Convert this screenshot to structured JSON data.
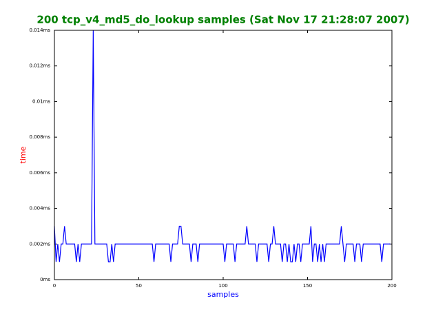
{
  "chart_data": {
    "type": "line",
    "title": "200 tcp_v4_md5_do_lookup samples (Sat Nov 17 21:28:07 2007)",
    "x_label": "samples",
    "y_label": "time",
    "color": "#0000ff",
    "xlim": [
      0,
      200
    ],
    "xticks": [
      0,
      50,
      100,
      150,
      200
    ],
    "ylim": [
      0,
      0.014
    ],
    "yticks": [
      {
        "value": 0,
        "label": "0ms"
      },
      {
        "value": 0.002,
        "label": "0.002ms"
      },
      {
        "value": 0.004,
        "label": "0.004ms"
      },
      {
        "value": 0.006,
        "label": "0.006ms"
      },
      {
        "value": 0.008,
        "label": "0.008ms"
      },
      {
        "value": 0.01,
        "label": "0.01ms"
      },
      {
        "value": 0.012,
        "label": "0.012ms"
      },
      {
        "value": 0.014,
        "label": "0.014ms"
      }
    ],
    "values": [
      0.003,
      0.001,
      0.002,
      0.001,
      0.002,
      0.002,
      0.003,
      0.002,
      0.002,
      0.002,
      0.002,
      0.002,
      0.002,
      0.001,
      0.002,
      0.001,
      0.002,
      0.002,
      0.002,
      0.002,
      0.002,
      0.002,
      0.002,
      0.014,
      0.002,
      0.002,
      0.002,
      0.002,
      0.002,
      0.002,
      0.002,
      0.002,
      0.001,
      0.001,
      0.002,
      0.001,
      0.002,
      0.002,
      0.002,
      0.002,
      0.002,
      0.002,
      0.002,
      0.002,
      0.002,
      0.002,
      0.002,
      0.002,
      0.002,
      0.002,
      0.002,
      0.002,
      0.002,
      0.002,
      0.002,
      0.002,
      0.002,
      0.002,
      0.002,
      0.001,
      0.002,
      0.002,
      0.002,
      0.002,
      0.002,
      0.002,
      0.002,
      0.002,
      0.002,
      0.001,
      0.002,
      0.002,
      0.002,
      0.002,
      0.003,
      0.003,
      0.002,
      0.002,
      0.002,
      0.002,
      0.002,
      0.001,
      0.002,
      0.002,
      0.002,
      0.001,
      0.002,
      0.002,
      0.002,
      0.002,
      0.002,
      0.002,
      0.002,
      0.002,
      0.002,
      0.002,
      0.002,
      0.002,
      0.002,
      0.002,
      0.002,
      0.001,
      0.002,
      0.002,
      0.002,
      0.002,
      0.002,
      0.001,
      0.002,
      0.002,
      0.002,
      0.002,
      0.002,
      0.002,
      0.003,
      0.002,
      0.002,
      0.002,
      0.002,
      0.002,
      0.001,
      0.002,
      0.002,
      0.002,
      0.002,
      0.002,
      0.002,
      0.001,
      0.002,
      0.002,
      0.003,
      0.002,
      0.002,
      0.002,
      0.002,
      0.001,
      0.002,
      0.002,
      0.001,
      0.002,
      0.001,
      0.001,
      0.002,
      0.001,
      0.002,
      0.002,
      0.001,
      0.002,
      0.002,
      0.002,
      0.002,
      0.002,
      0.003,
      0.001,
      0.002,
      0.002,
      0.001,
      0.002,
      0.001,
      0.002,
      0.001,
      0.002,
      0.002,
      0.002,
      0.002,
      0.002,
      0.002,
      0.002,
      0.002,
      0.002,
      0.003,
      0.002,
      0.001,
      0.002,
      0.002,
      0.002,
      0.002,
      0.002,
      0.001,
      0.002,
      0.002,
      0.002,
      0.001,
      0.002,
      0.002,
      0.002,
      0.002,
      0.002,
      0.002,
      0.002,
      0.002,
      0.002,
      0.002,
      0.002,
      0.001,
      0.002,
      0.002,
      0.002,
      0.002,
      0.002
    ]
  }
}
